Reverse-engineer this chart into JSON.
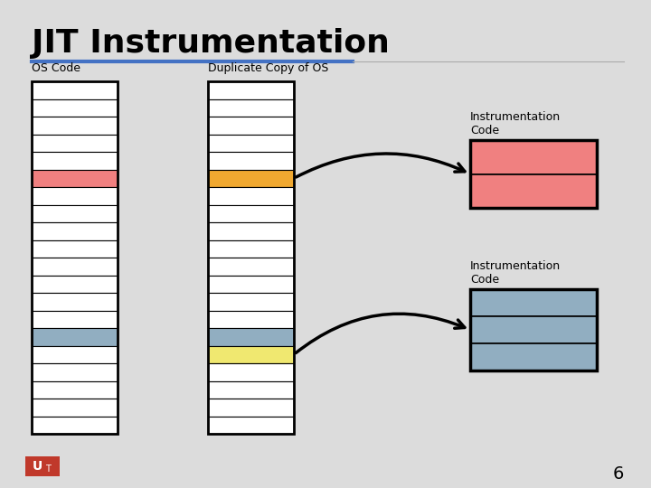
{
  "title": "JIT Instrumentation",
  "bg_color": "#dcdcdc",
  "title_color": "#000000",
  "title_fontsize": 26,
  "slide_number": "6",
  "divider_color_left": "#4472c4",
  "divider_color_right": "#aaaaaa",
  "col1_label": "OS Code",
  "col2_label": "Duplicate Copy of OS",
  "col3_label1": "Instrumentation\nCode",
  "col3_label2": "Instrumentation\nCode",
  "num_rows": 20,
  "col1_highlight_index": 5,
  "col1_highlight_color": "#f08080",
  "col1_highlight2_index": 14,
  "col1_highlight2_color": "#91aec1",
  "col2_highlight1_index": 5,
  "col2_highlight1_color": "#f0a830",
  "col2_highlight2_index": 14,
  "col2_highlight2_color": "#91aec1",
  "col2_highlight3_index": 15,
  "col2_highlight3_color": "#f0e870",
  "instr_box1_color": "#f08080",
  "instr_box2_color": "#91aec1",
  "logo_bg": "#c0392b"
}
